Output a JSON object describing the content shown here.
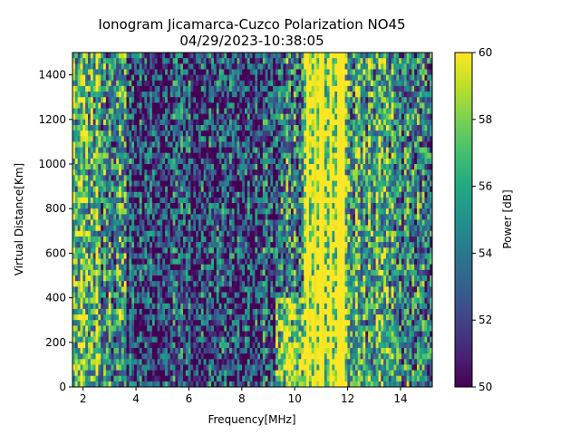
{
  "chart_data": {
    "type": "heatmap",
    "title": "Ionogram Jicamarca-Cuzco Polarization NO45",
    "subtitle": "04/29/2023-10:38:05",
    "xlabel": "Frequency[MHz]",
    "ylabel": "Virtual Distance[Km]",
    "xlim": [
      1.6,
      15.2
    ],
    "ylim": [
      0,
      1500
    ],
    "x_ticks": [
      2,
      4,
      6,
      8,
      10,
      12,
      14
    ],
    "y_ticks": [
      0,
      200,
      400,
      600,
      800,
      1000,
      1200,
      1400
    ],
    "colorbar": {
      "label": "Power [dB]",
      "range": [
        50,
        60
      ],
      "ticks": [
        50,
        52,
        54,
        56,
        58,
        60
      ],
      "colormap": "viridis"
    },
    "frequency_profile": [
      {
        "f_min": 1.6,
        "f_max": 2.6,
        "mean_power_db": 57
      },
      {
        "f_min": 2.6,
        "f_max": 3.6,
        "mean_power_db": 55
      },
      {
        "f_min": 3.6,
        "f_max": 7.0,
        "mean_power_db": 52
      },
      {
        "f_min": 7.0,
        "f_max": 9.3,
        "mean_power_db": 52.5
      },
      {
        "f_min": 9.3,
        "f_max": 10.3,
        "mean_power_db": 54
      },
      {
        "f_min": 10.3,
        "f_max": 11.9,
        "mean_power_db": 60
      },
      {
        "f_min": 11.9,
        "f_max": 13.9,
        "mean_power_db": 56
      },
      {
        "f_min": 13.9,
        "f_max": 15.2,
        "mean_power_db": 54
      }
    ]
  }
}
